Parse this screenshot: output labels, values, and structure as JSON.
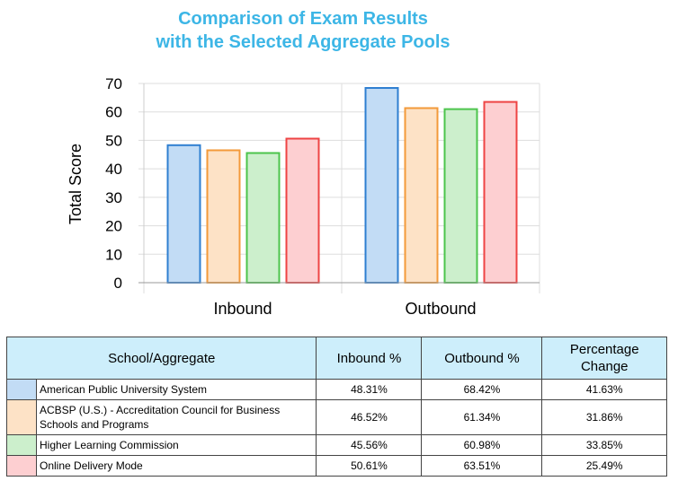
{
  "title_line1": "Comparison of Exam Results",
  "title_line2": "with the Selected Aggregate Pools",
  "chart_data": {
    "type": "bar",
    "categories": [
      "Inbound",
      "Outbound"
    ],
    "ylabel": "Total Score",
    "ylim": [
      0,
      70
    ],
    "yticks": [
      0,
      10,
      20,
      30,
      40,
      50,
      60,
      70
    ],
    "grid": true,
    "series": [
      {
        "name": "American Public University System",
        "values": [
          48.31,
          68.42
        ],
        "fill": "#c2dcf5",
        "stroke": "#2f7fd1"
      },
      {
        "name": "ACBSP (U.S.) - Accreditation Council for Business Schools and Programs",
        "values": [
          46.52,
          61.34
        ],
        "fill": "#fde2c6",
        "stroke": "#f39a3a"
      },
      {
        "name": "Higher Learning Commission",
        "values": [
          45.56,
          60.98
        ],
        "fill": "#ccefcc",
        "stroke": "#4cc44c"
      },
      {
        "name": "Online Delivery Mode",
        "values": [
          50.61,
          63.51
        ],
        "fill": "#fdcfd1",
        "stroke": "#ee4444"
      }
    ]
  },
  "table": {
    "headers": [
      "School/Aggregate",
      "Inbound %",
      "Outbound %",
      "Percentage Change"
    ],
    "rows": [
      {
        "name": "American Public University System",
        "inbound": "48.31%",
        "outbound": "68.42%",
        "change": "41.63%"
      },
      {
        "name": "ACBSP (U.S.) - Accreditation Council for Business Schools and Programs",
        "inbound": "46.52%",
        "outbound": "61.34%",
        "change": "31.86%"
      },
      {
        "name": "Higher Learning Commission",
        "inbound": "45.56%",
        "outbound": "60.98%",
        "change": "33.85%"
      },
      {
        "name": "Online Delivery Mode",
        "inbound": "50.61%",
        "outbound": "63.51%",
        "change": "25.49%"
      }
    ]
  }
}
